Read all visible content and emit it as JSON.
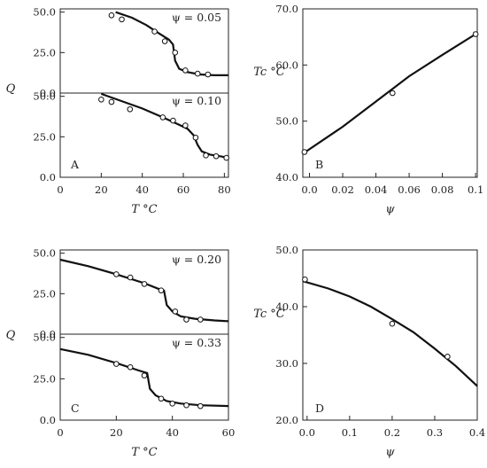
{
  "chart_data": [
    {
      "id": "A_top",
      "type": "scatter",
      "panel_label": "",
      "annotation": "ψ = 0.05",
      "xlim": [
        0,
        82
      ],
      "ylim": [
        0,
        52
      ],
      "xticks": [],
      "yticks": [
        "0.0",
        "25.0",
        "50.0"
      ],
      "xlabel": "",
      "ylabel": "",
      "points": [
        [
          25,
          48
        ],
        [
          30,
          45.5
        ],
        [
          46,
          38
        ],
        [
          51,
          32
        ],
        [
          56,
          25
        ],
        [
          61,
          14
        ],
        [
          67,
          12
        ],
        [
          72,
          11.5
        ]
      ],
      "fit": [
        [
          27,
          50
        ],
        [
          35,
          46.5
        ],
        [
          42,
          42
        ],
        [
          48,
          37
        ],
        [
          53,
          33
        ],
        [
          55,
          30
        ],
        [
          56,
          20
        ],
        [
          58,
          15
        ],
        [
          62,
          13
        ],
        [
          68,
          11.5
        ],
        [
          75,
          11
        ],
        [
          82,
          11
        ]
      ]
    },
    {
      "id": "A_bottom",
      "type": "scatter",
      "panel_label": "A",
      "annotation": "ψ = 0.10",
      "xlim": [
        0,
        82
      ],
      "ylim": [
        0,
        52
      ],
      "xticks": [
        "0",
        "20",
        "40",
        "60",
        "80"
      ],
      "yticks": [
        "0.0",
        "25.0",
        "50.0"
      ],
      "xlabel": "T  °C",
      "ylabel": "",
      "points": [
        [
          20,
          48
        ],
        [
          25,
          46.5
        ],
        [
          34,
          42
        ],
        [
          50,
          37
        ],
        [
          55,
          35
        ],
        [
          61,
          32
        ],
        [
          66,
          24.5
        ],
        [
          71,
          13.5
        ],
        [
          76,
          13
        ],
        [
          81,
          12
        ]
      ],
      "fit": [
        [
          20,
          51.5
        ],
        [
          30,
          47
        ],
        [
          40,
          42.5
        ],
        [
          50,
          37
        ],
        [
          57,
          33
        ],
        [
          62,
          30
        ],
        [
          65,
          26
        ],
        [
          67,
          20
        ],
        [
          69,
          16
        ],
        [
          73,
          14
        ],
        [
          78,
          13
        ],
        [
          82,
          12
        ]
      ]
    },
    {
      "id": "B",
      "type": "scatter",
      "panel_label": "B",
      "annotation": "",
      "xlim": [
        -0.004,
        0.101
      ],
      "ylim": [
        40,
        70
      ],
      "xticks": [
        "0.0",
        "0.02",
        "0.04",
        "0.06",
        "0.08",
        "0.1"
      ],
      "yticks": [
        "40.0",
        "50.0",
        "60.0",
        "70.0"
      ],
      "xlabel": "ψ",
      "ylabel": "Tc °C",
      "points": [
        [
          -0.003,
          44.5
        ],
        [
          0.05,
          55
        ],
        [
          0.1,
          65.5
        ]
      ],
      "fit": [
        [
          -0.004,
          44.2
        ],
        [
          0.02,
          49
        ],
        [
          0.04,
          53.5
        ],
        [
          0.06,
          58
        ],
        [
          0.08,
          61.8
        ],
        [
          0.1,
          65.5
        ]
      ]
    },
    {
      "id": "C_top",
      "type": "scatter",
      "panel_label": "",
      "annotation": "ψ = 0.20",
      "xlim": [
        0,
        60
      ],
      "ylim": [
        0,
        52
      ],
      "xticks": [],
      "yticks": [
        "0.0",
        "25.0",
        "50.0"
      ],
      "xlabel": "",
      "ylabel": "",
      "points": [
        [
          20,
          37
        ],
        [
          25,
          35
        ],
        [
          30,
          31
        ],
        [
          36,
          27
        ],
        [
          41,
          14
        ],
        [
          45,
          9
        ],
        [
          50,
          9
        ]
      ],
      "fit": [
        [
          0,
          46
        ],
        [
          10,
          42
        ],
        [
          20,
          37
        ],
        [
          30,
          31.5
        ],
        [
          35,
          28
        ],
        [
          37,
          27
        ],
        [
          38,
          18
        ],
        [
          40,
          14
        ],
        [
          43,
          11
        ],
        [
          48,
          9.5
        ],
        [
          55,
          8.5
        ],
        [
          60,
          8
        ]
      ]
    },
    {
      "id": "C_bottom",
      "type": "scatter",
      "panel_label": "C",
      "annotation": "ψ = 0.33",
      "xlim": [
        0,
        60
      ],
      "ylim": [
        0,
        52
      ],
      "xticks": [
        "0",
        "20",
        "40",
        "60"
      ],
      "yticks": [
        "0.0",
        "25.0",
        "50.0"
      ],
      "xlabel": "T  °C",
      "ylabel": "",
      "points": [
        [
          20,
          34
        ],
        [
          25,
          32
        ],
        [
          30,
          27
        ],
        [
          36,
          13
        ],
        [
          40,
          10
        ],
        [
          45,
          9
        ],
        [
          50,
          8.5
        ]
      ],
      "fit": [
        [
          0,
          43
        ],
        [
          10,
          39.5
        ],
        [
          20,
          34.5
        ],
        [
          28,
          30
        ],
        [
          31,
          28.5
        ],
        [
          32,
          19
        ],
        [
          34,
          15
        ],
        [
          38,
          11.5
        ],
        [
          43,
          10
        ],
        [
          50,
          9
        ],
        [
          60,
          8.5
        ]
      ]
    },
    {
      "id": "D",
      "type": "scatter",
      "panel_label": "D",
      "annotation": "",
      "xlim": [
        -0.01,
        0.4
      ],
      "ylim": [
        20,
        50
      ],
      "xticks": [
        "0.0",
        "0.1",
        "0.2",
        "0.3",
        "0.4"
      ],
      "yticks": [
        "20.0",
        "30.0",
        "40.0",
        "50.0"
      ],
      "xlabel": "ψ",
      "ylabel": "Tc °C",
      "points": [
        [
          -0.005,
          44.8
        ],
        [
          0.2,
          37
        ],
        [
          0.33,
          31.2
        ]
      ],
      "fit": [
        [
          -0.01,
          44.5
        ],
        [
          0.05,
          43.2
        ],
        [
          0.1,
          41.8
        ],
        [
          0.15,
          40
        ],
        [
          0.2,
          37.8
        ],
        [
          0.25,
          35.5
        ],
        [
          0.3,
          32.6
        ],
        [
          0.35,
          29.5
        ],
        [
          0.4,
          26
        ]
      ]
    }
  ],
  "labels": {
    "q_left_top": "Q",
    "q_left_bottom": "Q"
  }
}
